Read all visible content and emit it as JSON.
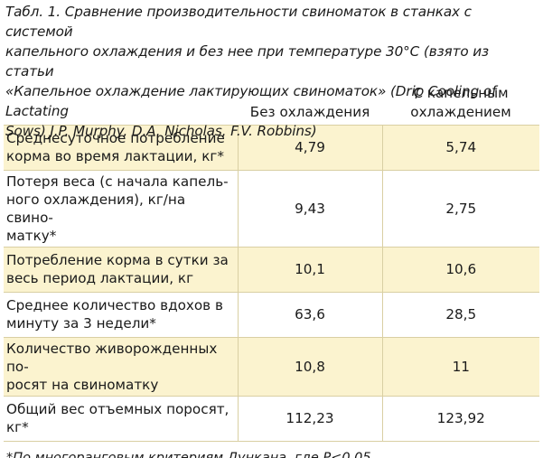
{
  "caption": {
    "line1": "Табл. 1. Сравнение производительности свиноматок в станках с системой",
    "line2": "капельного охлаждения и без нее при температуре 30°С (взято из статьи",
    "line3": "«Капельное охлаждение лактирующих свиноматок» (Drip Cooling of Lactating",
    "line4": "Sows) J.P. Murphy, D.A. Nicholas, F.V. Robbins)"
  },
  "table": {
    "headers": {
      "col1": "",
      "col2": "Без охлаждения",
      "col3_line1": "С капельным",
      "col3_line2": "охлаждением"
    },
    "rows": [
      {
        "label_line1": "Среднесуточное потребление",
        "label_line2": "корма во время лактации, кг*",
        "label_line3": "",
        "without": "4,79",
        "with": "5,74"
      },
      {
        "label_line1": "Потеря веса (с начала капель-",
        "label_line2": "ного охлаждения), кг/на свино-",
        "label_line3": "матку*",
        "without": "9,43",
        "with": "2,75"
      },
      {
        "label_line1": "Потребление корма в сутки за",
        "label_line2": "весь период лактации, кг",
        "label_line3": "",
        "without": "10,1",
        "with": "10,6"
      },
      {
        "label_line1": "Среднее количество вдохов в",
        "label_line2": "минуту за 3 недели*",
        "label_line3": "",
        "without": "63,6",
        "with": "28,5"
      },
      {
        "label_line1": "Количество живорожденных по-",
        "label_line2": "росят на свиноматку",
        "label_line3": "",
        "without": "10,8",
        "with": "11"
      },
      {
        "label_line1": "Общий вес отъемных поросят,",
        "label_line2": "кг*",
        "label_line3": "",
        "without": "112,23",
        "with": "123,92"
      }
    ]
  },
  "footnote": "*По многоранговым критериям Дункана, где P<0,05",
  "colors": {
    "shade": "#fbf3cf",
    "rule": "#d9cfa3",
    "text": "#1a1a1a"
  }
}
